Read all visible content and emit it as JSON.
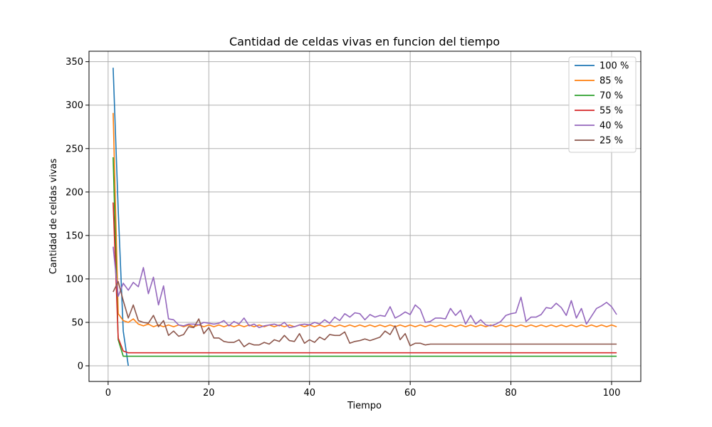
{
  "chart_data": {
    "type": "line",
    "title": "Cantidad de celdas vivas en funcion del tiempo",
    "xlabel": "Tiempo",
    "ylabel": "Cantidad de celdas vivas",
    "xlim": [
      -3.8,
      105.8
    ],
    "ylim": [
      -18,
      362
    ],
    "xticks": [
      0,
      20,
      40,
      60,
      80,
      100
    ],
    "yticks": [
      0,
      50,
      100,
      150,
      200,
      250,
      300,
      350
    ],
    "grid": true,
    "legend_position": "top-right",
    "series": [
      {
        "name": "100 %",
        "color": "#1f77b4",
        "points": [
          [
            1,
            343
          ],
          [
            2,
            180
          ],
          [
            3,
            40
          ],
          [
            4,
            0
          ]
        ]
      },
      {
        "name": "85 %",
        "color": "#ff7f0e",
        "points": [
          [
            1,
            291
          ],
          [
            2,
            60
          ],
          [
            3,
            52
          ],
          [
            4,
            50
          ],
          [
            5,
            54
          ],
          [
            6,
            48
          ],
          [
            7,
            46
          ],
          [
            8,
            48
          ],
          [
            9,
            45
          ],
          [
            10,
            47
          ],
          [
            11,
            45
          ],
          [
            12,
            47
          ],
          [
            13,
            45
          ],
          [
            14,
            47
          ],
          [
            15,
            45
          ],
          [
            16,
            47
          ],
          [
            17,
            45
          ],
          [
            18,
            47
          ],
          [
            19,
            45
          ],
          [
            20,
            47
          ],
          [
            21,
            45
          ],
          [
            22,
            47
          ],
          [
            23,
            45
          ],
          [
            24,
            47
          ],
          [
            25,
            45
          ],
          [
            26,
            47
          ],
          [
            27,
            45
          ],
          [
            28,
            47
          ],
          [
            29,
            45
          ],
          [
            30,
            47
          ],
          [
            31,
            45
          ],
          [
            32,
            47
          ],
          [
            33,
            45
          ],
          [
            34,
            47
          ],
          [
            35,
            45
          ],
          [
            36,
            47
          ],
          [
            37,
            45
          ],
          [
            38,
            47
          ],
          [
            39,
            45
          ],
          [
            40,
            47
          ],
          [
            41,
            45
          ],
          [
            42,
            47
          ],
          [
            43,
            45
          ],
          [
            44,
            47
          ],
          [
            45,
            45
          ],
          [
            46,
            47
          ],
          [
            47,
            45
          ],
          [
            48,
            47
          ],
          [
            49,
            45
          ],
          [
            50,
            47
          ],
          [
            51,
            45
          ],
          [
            52,
            47
          ],
          [
            53,
            45
          ],
          [
            54,
            47
          ],
          [
            55,
            45
          ],
          [
            56,
            47
          ],
          [
            57,
            45
          ],
          [
            58,
            47
          ],
          [
            59,
            45
          ],
          [
            60,
            47
          ],
          [
            61,
            45
          ],
          [
            62,
            47
          ],
          [
            63,
            45
          ],
          [
            64,
            47
          ],
          [
            65,
            45
          ],
          [
            66,
            47
          ],
          [
            67,
            45
          ],
          [
            68,
            47
          ],
          [
            69,
            45
          ],
          [
            70,
            47
          ],
          [
            71,
            45
          ],
          [
            72,
            47
          ],
          [
            73,
            45
          ],
          [
            74,
            47
          ],
          [
            75,
            45
          ],
          [
            76,
            47
          ],
          [
            77,
            45
          ],
          [
            78,
            47
          ],
          [
            79,
            45
          ],
          [
            80,
            47
          ],
          [
            81,
            45
          ],
          [
            82,
            47
          ],
          [
            83,
            45
          ],
          [
            84,
            47
          ],
          [
            85,
            45
          ],
          [
            86,
            47
          ],
          [
            87,
            45
          ],
          [
            88,
            47
          ],
          [
            89,
            45
          ],
          [
            90,
            47
          ],
          [
            91,
            45
          ],
          [
            92,
            47
          ],
          [
            93,
            45
          ],
          [
            94,
            47
          ],
          [
            95,
            45
          ],
          [
            96,
            47
          ],
          [
            97,
            45
          ],
          [
            98,
            47
          ],
          [
            99,
            45
          ],
          [
            100,
            47
          ],
          [
            101,
            45
          ]
        ]
      },
      {
        "name": "70 %",
        "color": "#2ca02c",
        "points": [
          [
            1,
            240
          ],
          [
            2,
            30
          ],
          [
            3,
            11
          ],
          [
            4,
            11
          ],
          [
            101,
            11
          ]
        ]
      },
      {
        "name": "55 %",
        "color": "#d62728",
        "points": [
          [
            1,
            188
          ],
          [
            2,
            32
          ],
          [
            3,
            17
          ],
          [
            4,
            15
          ],
          [
            101,
            15
          ]
        ]
      },
      {
        "name": "40 %",
        "color": "#9467bd",
        "points": [
          [
            1,
            137
          ],
          [
            2,
            80
          ],
          [
            3,
            95
          ],
          [
            4,
            87
          ],
          [
            5,
            96
          ],
          [
            6,
            91
          ],
          [
            7,
            113
          ],
          [
            8,
            83
          ],
          [
            9,
            102
          ],
          [
            10,
            70
          ],
          [
            11,
            92
          ],
          [
            12,
            54
          ],
          [
            13,
            53
          ],
          [
            14,
            47
          ],
          [
            15,
            46
          ],
          [
            16,
            48
          ],
          [
            17,
            48
          ],
          [
            18,
            47
          ],
          [
            19,
            50
          ],
          [
            20,
            49
          ],
          [
            21,
            48
          ],
          [
            22,
            49
          ],
          [
            23,
            52
          ],
          [
            24,
            46
          ],
          [
            25,
            51
          ],
          [
            26,
            48
          ],
          [
            27,
            55
          ],
          [
            28,
            46
          ],
          [
            29,
            48
          ],
          [
            30,
            44
          ],
          [
            31,
            46
          ],
          [
            32,
            47
          ],
          [
            33,
            48
          ],
          [
            34,
            46
          ],
          [
            35,
            50
          ],
          [
            36,
            44
          ],
          [
            37,
            45
          ],
          [
            38,
            47
          ],
          [
            39,
            48
          ],
          [
            40,
            47
          ],
          [
            41,
            50
          ],
          [
            42,
            48
          ],
          [
            43,
            53
          ],
          [
            44,
            49
          ],
          [
            45,
            56
          ],
          [
            46,
            52
          ],
          [
            47,
            60
          ],
          [
            48,
            56
          ],
          [
            49,
            61
          ],
          [
            50,
            60
          ],
          [
            51,
            53
          ],
          [
            52,
            59
          ],
          [
            53,
            56
          ],
          [
            54,
            58
          ],
          [
            55,
            57
          ],
          [
            56,
            68
          ],
          [
            57,
            55
          ],
          [
            58,
            58
          ],
          [
            59,
            62
          ],
          [
            60,
            59
          ],
          [
            61,
            70
          ],
          [
            62,
            65
          ],
          [
            63,
            50
          ],
          [
            64,
            51
          ],
          [
            65,
            55
          ],
          [
            66,
            55
          ],
          [
            67,
            54
          ],
          [
            68,
            66
          ],
          [
            69,
            58
          ],
          [
            70,
            64
          ],
          [
            71,
            48
          ],
          [
            72,
            58
          ],
          [
            73,
            48
          ],
          [
            74,
            53
          ],
          [
            75,
            47
          ],
          [
            76,
            46
          ],
          [
            77,
            48
          ],
          [
            78,
            51
          ],
          [
            79,
            58
          ],
          [
            80,
            60
          ],
          [
            81,
            61
          ],
          [
            82,
            79
          ],
          [
            83,
            51
          ],
          [
            84,
            56
          ],
          [
            85,
            56
          ],
          [
            86,
            59
          ],
          [
            87,
            67
          ],
          [
            88,
            66
          ],
          [
            89,
            72
          ],
          [
            90,
            67
          ],
          [
            91,
            58
          ],
          [
            92,
            75
          ],
          [
            93,
            55
          ],
          [
            94,
            66
          ],
          [
            95,
            48
          ],
          [
            96,
            57
          ],
          [
            97,
            66
          ],
          [
            98,
            69
          ],
          [
            99,
            73
          ],
          [
            100,
            68
          ],
          [
            101,
            59
          ]
        ]
      },
      {
        "name": "25 %",
        "color": "#8c564b",
        "points": [
          [
            1,
            85
          ],
          [
            2,
            97
          ],
          [
            3,
            75
          ],
          [
            4,
            55
          ],
          [
            5,
            70
          ],
          [
            6,
            52
          ],
          [
            7,
            50
          ],
          [
            8,
            49
          ],
          [
            9,
            58
          ],
          [
            10,
            45
          ],
          [
            11,
            52
          ],
          [
            12,
            35
          ],
          [
            13,
            40
          ],
          [
            14,
            34
          ],
          [
            15,
            36
          ],
          [
            16,
            45
          ],
          [
            17,
            44
          ],
          [
            18,
            54
          ],
          [
            19,
            37
          ],
          [
            20,
            44
          ],
          [
            21,
            32
          ],
          [
            22,
            32
          ],
          [
            23,
            28
          ],
          [
            24,
            27
          ],
          [
            25,
            27
          ],
          [
            26,
            30
          ],
          [
            27,
            22
          ],
          [
            28,
            26
          ],
          [
            29,
            24
          ],
          [
            30,
            24
          ],
          [
            31,
            27
          ],
          [
            32,
            25
          ],
          [
            33,
            30
          ],
          [
            34,
            28
          ],
          [
            35,
            35
          ],
          [
            36,
            29
          ],
          [
            37,
            28
          ],
          [
            38,
            37
          ],
          [
            39,
            26
          ],
          [
            40,
            30
          ],
          [
            41,
            27
          ],
          [
            42,
            33
          ],
          [
            43,
            30
          ],
          [
            44,
            36
          ],
          [
            45,
            35
          ],
          [
            46,
            35
          ],
          [
            47,
            39
          ],
          [
            48,
            26
          ],
          [
            49,
            28
          ],
          [
            50,
            29
          ],
          [
            51,
            31
          ],
          [
            52,
            29
          ],
          [
            53,
            31
          ],
          [
            54,
            33
          ],
          [
            55,
            40
          ],
          [
            56,
            36
          ],
          [
            57,
            46
          ],
          [
            58,
            30
          ],
          [
            59,
            37
          ],
          [
            60,
            23
          ],
          [
            61,
            26
          ],
          [
            62,
            26
          ],
          [
            63,
            24
          ],
          [
            64,
            25
          ],
          [
            65,
            25
          ],
          [
            101,
            25
          ]
        ]
      }
    ]
  }
}
